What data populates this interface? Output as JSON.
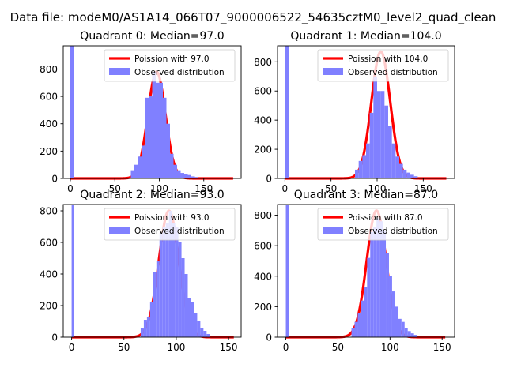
{
  "figure": {
    "suptitle": "Data file: modeM0/AS1A14_066T07_9000006522_54635cztM0_level2_quad_clean"
  },
  "colors": {
    "histogram": "#8080ff",
    "poisson_curve": "#ff0000",
    "axes": "#000000",
    "background": "#ffffff"
  },
  "chart_data": [
    {
      "type": "bar",
      "title": "Quadrant 0: Median=97.0",
      "median": 97.0,
      "xlim": [
        -8,
        192
      ],
      "ylim": [
        0,
        970
      ],
      "xticks": [
        0,
        50,
        100,
        150
      ],
      "yticks": [
        0,
        200,
        400,
        600,
        800
      ],
      "xlabel": "",
      "ylabel": "",
      "legend_position": "top-right",
      "series": [
        {
          "name": "Poission with 97.0",
          "kind": "line",
          "mu": 97.0,
          "scale": 780,
          "x_range": [
            0,
            183
          ]
        },
        {
          "name": "Observed distribution",
          "kind": "histogram",
          "bins": [
            {
              "x0": 0,
              "x1": 4,
              "count": 970
            },
            {
              "x0": 68,
              "x1": 72,
              "count": 60
            },
            {
              "x0": 72,
              "x1": 76,
              "count": 100
            },
            {
              "x0": 76,
              "x1": 80,
              "count": 160
            },
            {
              "x0": 80,
              "x1": 84,
              "count": 240
            },
            {
              "x0": 84,
              "x1": 88,
              "count": 590
            },
            {
              "x0": 88,
              "x1": 92,
              "count": 600
            },
            {
              "x0": 92,
              "x1": 96,
              "count": 780
            },
            {
              "x0": 96,
              "x1": 100,
              "count": 700
            },
            {
              "x0": 100,
              "x1": 104,
              "count": 700
            },
            {
              "x0": 104,
              "x1": 108,
              "count": 590
            },
            {
              "x0": 108,
              "x1": 112,
              "count": 400
            },
            {
              "x0": 112,
              "x1": 116,
              "count": 180
            },
            {
              "x0": 116,
              "x1": 120,
              "count": 100
            },
            {
              "x0": 120,
              "x1": 124,
              "count": 60
            },
            {
              "x0": 124,
              "x1": 128,
              "count": 40
            },
            {
              "x0": 128,
              "x1": 132,
              "count": 30
            },
            {
              "x0": 132,
              "x1": 136,
              "count": 25
            },
            {
              "x0": 136,
              "x1": 140,
              "count": 15
            },
            {
              "x0": 140,
              "x1": 144,
              "count": 10
            }
          ]
        }
      ]
    },
    {
      "type": "bar",
      "title": "Quadrant 1: Median=104.0",
      "median": 104.0,
      "xlim": [
        -8,
        184
      ],
      "ylim": [
        0,
        910
      ],
      "xticks": [
        0,
        50,
        100,
        150
      ],
      "yticks": [
        0,
        200,
        400,
        600,
        800
      ],
      "xlabel": "",
      "ylabel": "",
      "legend_position": "top-right",
      "series": [
        {
          "name": "Poission with 104.0",
          "kind": "line",
          "mu": 104.0,
          "scale": 870,
          "x_range": [
            0,
            175
          ]
        },
        {
          "name": "Observed distribution",
          "kind": "histogram",
          "bins": [
            {
              "x0": 0,
              "x1": 4,
              "count": 910
            },
            {
              "x0": 76,
              "x1": 80,
              "count": 60
            },
            {
              "x0": 80,
              "x1": 84,
              "count": 120
            },
            {
              "x0": 84,
              "x1": 88,
              "count": 160
            },
            {
              "x0": 88,
              "x1": 92,
              "count": 240
            },
            {
              "x0": 92,
              "x1": 96,
              "count": 450
            },
            {
              "x0": 96,
              "x1": 100,
              "count": 700
            },
            {
              "x0": 100,
              "x1": 104,
              "count": 600
            },
            {
              "x0": 104,
              "x1": 108,
              "count": 600
            },
            {
              "x0": 108,
              "x1": 112,
              "count": 500
            },
            {
              "x0": 112,
              "x1": 116,
              "count": 360
            },
            {
              "x0": 116,
              "x1": 120,
              "count": 240
            },
            {
              "x0": 120,
              "x1": 124,
              "count": 150
            },
            {
              "x0": 124,
              "x1": 128,
              "count": 100
            },
            {
              "x0": 128,
              "x1": 132,
              "count": 60
            },
            {
              "x0": 132,
              "x1": 136,
              "count": 40
            },
            {
              "x0": 136,
              "x1": 140,
              "count": 25
            },
            {
              "x0": 140,
              "x1": 144,
              "count": 15
            }
          ]
        }
      ]
    },
    {
      "type": "bar",
      "title": "Quadrant 2: Median=93.0",
      "median": 93.0,
      "xlim": [
        -8,
        162
      ],
      "ylim": [
        0,
        840
      ],
      "xticks": [
        0,
        50,
        100,
        150
      ],
      "yticks": [
        0,
        200,
        400,
        600,
        800
      ],
      "xlabel": "",
      "ylabel": "",
      "legend_position": "top-right",
      "series": [
        {
          "name": "Poission with 93.0",
          "kind": "line",
          "mu": 93.0,
          "scale": 800,
          "x_range": [
            0,
            155
          ]
        },
        {
          "name": "Observed distribution",
          "kind": "histogram",
          "bins": [
            {
              "x0": 0,
              "x1": 2,
              "count": 840
            },
            {
              "x0": 66,
              "x1": 69,
              "count": 60
            },
            {
              "x0": 69,
              "x1": 72,
              "count": 110
            },
            {
              "x0": 72,
              "x1": 75,
              "count": 130
            },
            {
              "x0": 75,
              "x1": 78,
              "count": 220
            },
            {
              "x0": 78,
              "x1": 81,
              "count": 410
            },
            {
              "x0": 81,
              "x1": 84,
              "count": 480
            },
            {
              "x0": 84,
              "x1": 87,
              "count": 660
            },
            {
              "x0": 87,
              "x1": 90,
              "count": 700
            },
            {
              "x0": 90,
              "x1": 93,
              "count": 720
            },
            {
              "x0": 93,
              "x1": 96,
              "count": 800
            },
            {
              "x0": 96,
              "x1": 99,
              "count": 720
            },
            {
              "x0": 99,
              "x1": 102,
              "count": 700
            },
            {
              "x0": 102,
              "x1": 105,
              "count": 600
            },
            {
              "x0": 105,
              "x1": 108,
              "count": 500
            },
            {
              "x0": 108,
              "x1": 111,
              "count": 400
            },
            {
              "x0": 111,
              "x1": 114,
              "count": 250
            },
            {
              "x0": 114,
              "x1": 117,
              "count": 220
            },
            {
              "x0": 117,
              "x1": 120,
              "count": 150
            },
            {
              "x0": 120,
              "x1": 123,
              "count": 100
            },
            {
              "x0": 123,
              "x1": 126,
              "count": 60
            },
            {
              "x0": 126,
              "x1": 129,
              "count": 40
            },
            {
              "x0": 129,
              "x1": 132,
              "count": 20
            }
          ]
        }
      ]
    },
    {
      "type": "bar",
      "title": "Quadrant 3: Median=87.0",
      "median": 87.0,
      "xlim": [
        -8,
        162
      ],
      "ylim": [
        0,
        870
      ],
      "xticks": [
        0,
        50,
        100,
        150
      ],
      "yticks": [
        0,
        200,
        400,
        600,
        800
      ],
      "xlabel": "",
      "ylabel": "",
      "legend_position": "top-right",
      "series": [
        {
          "name": "Poission with 87.0",
          "kind": "line",
          "mu": 87.0,
          "scale": 830,
          "x_range": [
            0,
            153
          ]
        },
        {
          "name": "Observed distribution",
          "kind": "histogram",
          "bins": [
            {
              "x0": 0,
              "x1": 3,
              "count": 870
            },
            {
              "x0": 63,
              "x1": 66,
              "count": 60
            },
            {
              "x0": 66,
              "x1": 69,
              "count": 100
            },
            {
              "x0": 69,
              "x1": 72,
              "count": 160
            },
            {
              "x0": 72,
              "x1": 75,
              "count": 240
            },
            {
              "x0": 75,
              "x1": 78,
              "count": 330
            },
            {
              "x0": 78,
              "x1": 81,
              "count": 520
            },
            {
              "x0": 81,
              "x1": 84,
              "count": 690
            },
            {
              "x0": 84,
              "x1": 87,
              "count": 720
            },
            {
              "x0": 87,
              "x1": 90,
              "count": 780
            },
            {
              "x0": 90,
              "x1": 93,
              "count": 760
            },
            {
              "x0": 93,
              "x1": 96,
              "count": 700
            },
            {
              "x0": 96,
              "x1": 99,
              "count": 550
            },
            {
              "x0": 99,
              "x1": 102,
              "count": 400
            },
            {
              "x0": 102,
              "x1": 105,
              "count": 300
            },
            {
              "x0": 105,
              "x1": 108,
              "count": 200
            },
            {
              "x0": 108,
              "x1": 111,
              "count": 120
            },
            {
              "x0": 111,
              "x1": 114,
              "count": 100
            },
            {
              "x0": 114,
              "x1": 117,
              "count": 60
            },
            {
              "x0": 117,
              "x1": 120,
              "count": 40
            },
            {
              "x0": 120,
              "x1": 123,
              "count": 25
            },
            {
              "x0": 123,
              "x1": 126,
              "count": 15
            }
          ]
        }
      ]
    }
  ]
}
